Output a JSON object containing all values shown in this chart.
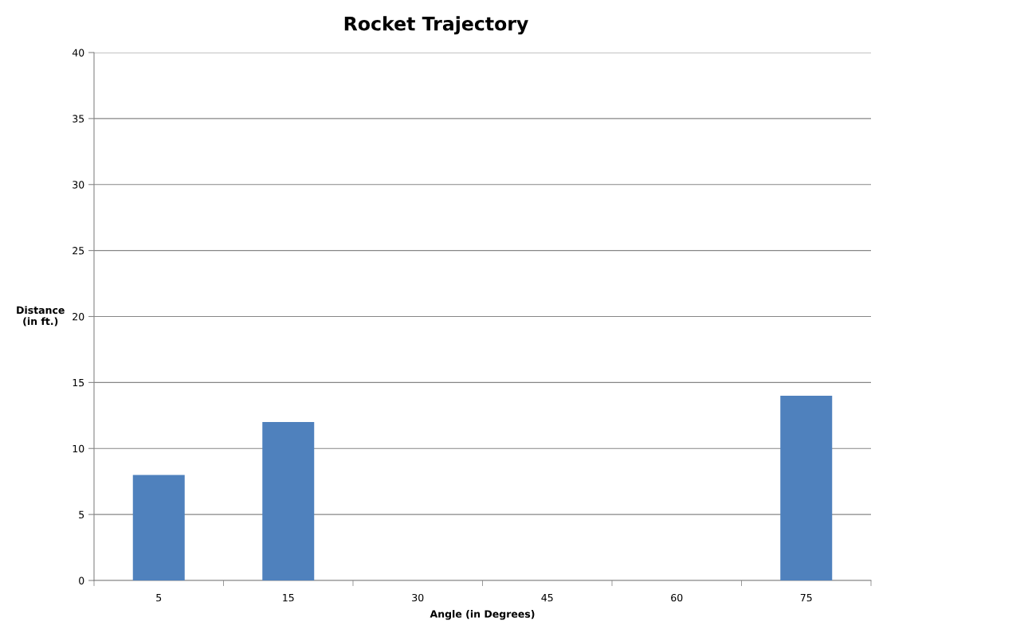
{
  "chart_data": {
    "type": "bar",
    "title": "Rocket Trajectory",
    "xlabel": "Angle (in Degrees)",
    "ylabel": "Distance\n(in ft.)",
    "categories": [
      "5",
      "15",
      "30",
      "45",
      "60",
      "75"
    ],
    "values": [
      8,
      12,
      null,
      null,
      null,
      14
    ],
    "color": "#4f81bd",
    "ylim": [
      0,
      40
    ],
    "yticks": [
      0,
      5,
      10,
      15,
      20,
      25,
      30,
      35,
      40
    ],
    "grid": "y",
    "legend": false
  }
}
